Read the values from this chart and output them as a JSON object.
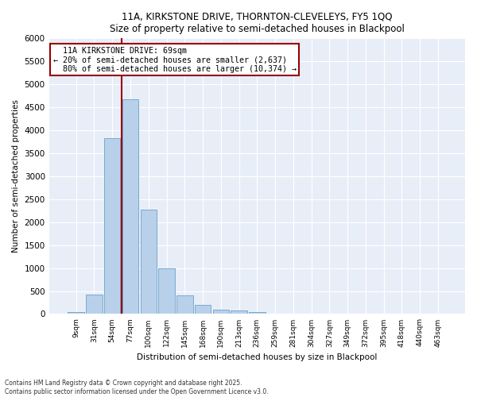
{
  "title": "11A, KIRKSTONE DRIVE, THORNTON-CLEVELEYS, FY5 1QQ",
  "subtitle": "Size of property relative to semi-detached houses in Blackpool",
  "xlabel": "Distribution of semi-detached houses by size in Blackpool",
  "ylabel": "Number of semi-detached properties",
  "bar_color": "#b8d0ea",
  "bar_edge_color": "#7aaad0",
  "bg_color": "#e8eef8",
  "categories": [
    "9sqm",
    "31sqm",
    "54sqm",
    "77sqm",
    "100sqm",
    "122sqm",
    "145sqm",
    "168sqm",
    "190sqm",
    "213sqm",
    "236sqm",
    "259sqm",
    "281sqm",
    "304sqm",
    "327sqm",
    "349sqm",
    "372sqm",
    "395sqm",
    "418sqm",
    "440sqm",
    "463sqm"
  ],
  "values": [
    50,
    430,
    3820,
    4680,
    2280,
    990,
    410,
    200,
    90,
    70,
    50,
    0,
    0,
    0,
    0,
    0,
    0,
    0,
    0,
    0,
    0
  ],
  "ylim": [
    0,
    6000
  ],
  "yticks": [
    0,
    500,
    1000,
    1500,
    2000,
    2500,
    3000,
    3500,
    4000,
    4500,
    5000,
    5500,
    6000
  ],
  "property_label": "11A KIRKSTONE DRIVE: 69sqm",
  "smaller_pct": 20,
  "smaller_count": 2637,
  "larger_pct": 80,
  "larger_count": 10374,
  "vline_color": "#990000",
  "annotation_box_color": "#990000",
  "vline_x_pos": 2.5,
  "footnote1": "Contains HM Land Registry data © Crown copyright and database right 2025.",
  "footnote2": "Contains public sector information licensed under the Open Government Licence v3.0."
}
